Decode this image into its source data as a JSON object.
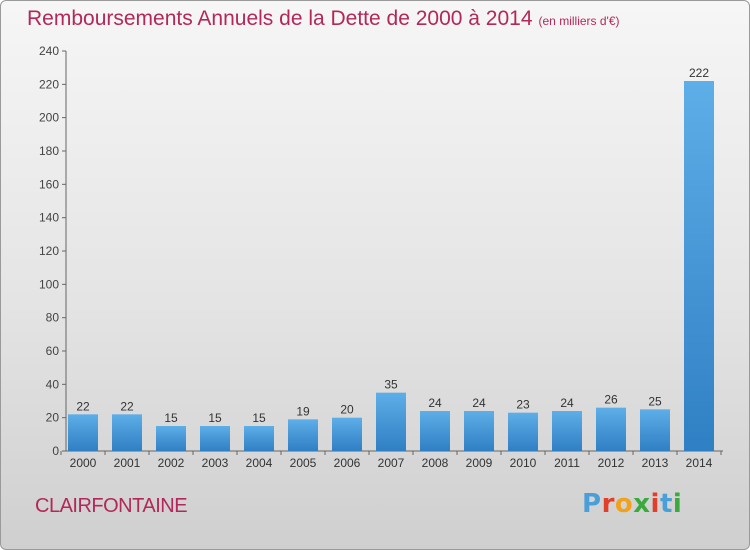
{
  "header": {
    "title": "Remboursements Annuels de la Dette de 2000 à 2014",
    "subtitle": "(en milliers d'€)"
  },
  "footer": {
    "commune": "CLAIRFONTAINE",
    "logo_letters": [
      "P",
      "r",
      "o",
      "x",
      "i",
      "t",
      "i"
    ],
    "logo_colors": [
      "#4a9fd8",
      "#e0402a",
      "#f2a11d",
      "#3aaa3c",
      "#e0402a",
      "#4a9fd8",
      "#3aaa3c"
    ]
  },
  "chart_data": {
    "type": "bar",
    "categories": [
      "2000",
      "2001",
      "2002",
      "2003",
      "2004",
      "2005",
      "2006",
      "2007",
      "2008",
      "2009",
      "2010",
      "2011",
      "2012",
      "2013",
      "2014"
    ],
    "values": [
      22,
      22,
      15,
      15,
      15,
      19,
      20,
      35,
      24,
      24,
      23,
      24,
      26,
      25,
      222
    ],
    "ylim": [
      0,
      240
    ],
    "yticks": [
      0,
      20,
      40,
      60,
      80,
      100,
      120,
      140,
      160,
      180,
      200,
      220,
      240
    ],
    "grid": false,
    "bar_color": "#3d8fd6"
  }
}
